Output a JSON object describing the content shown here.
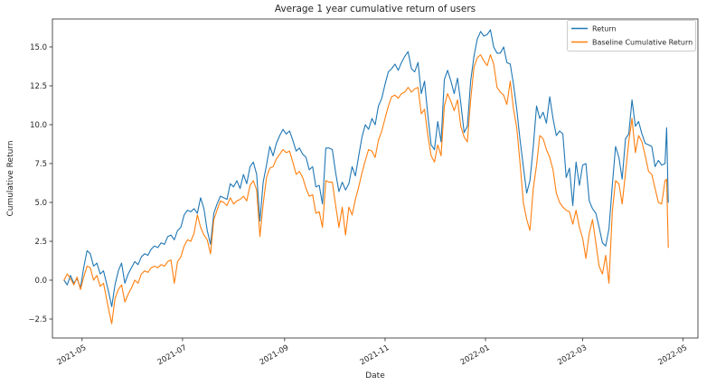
{
  "chart_data": {
    "type": "line",
    "title": "Average 1 year cumulative return of users",
    "xlabel": "Date",
    "ylabel": "Cumulative Return",
    "grid": false,
    "legend": {
      "position": "upper right",
      "entries": [
        "Return",
        "Baseline Cumulative Return"
      ]
    },
    "colors": {
      "Return": "#1f77b4",
      "Baseline Cumulative Return": "#ff7f0e"
    },
    "xlim": [
      "2021-04-13",
      "2022-05-10"
    ],
    "ylim": [
      -3.72,
      16.8
    ],
    "xticks": [
      "2021-05",
      "2021-07",
      "2021-09",
      "2021-11",
      "2022-01",
      "2022-03",
      "2022-05"
    ],
    "yticks": [
      -2.5,
      0.0,
      2.5,
      5.0,
      7.5,
      10.0,
      12.5,
      15.0
    ],
    "series_names": [
      "Return",
      "Baseline Cumulative Return"
    ],
    "data": [
      [
        "date",
        "Return",
        "Baseline Cumulative Return"
      ],
      [
        "2021-04-20",
        0.0,
        0.0
      ],
      [
        "2021-04-22",
        -0.3,
        0.4
      ],
      [
        "2021-04-24",
        0.3,
        0.1
      ],
      [
        "2021-04-26",
        -0.2,
        -0.3
      ],
      [
        "2021-04-28",
        0.1,
        0.2
      ],
      [
        "2021-04-30",
        -0.5,
        -0.6
      ],
      [
        "2021-05-02",
        0.8,
        0.2
      ],
      [
        "2021-05-04",
        1.9,
        0.9
      ],
      [
        "2021-05-06",
        1.7,
        0.8
      ],
      [
        "2021-05-08",
        0.9,
        0.0
      ],
      [
        "2021-05-10",
        1.1,
        0.3
      ],
      [
        "2021-05-12",
        0.4,
        -0.4
      ],
      [
        "2021-05-14",
        0.6,
        -0.2
      ],
      [
        "2021-05-17",
        -0.7,
        -1.8
      ],
      [
        "2021-05-19",
        -1.7,
        -2.8
      ],
      [
        "2021-05-21",
        -0.3,
        -1.2
      ],
      [
        "2021-05-23",
        0.6,
        -0.6
      ],
      [
        "2021-05-25",
        1.1,
        -0.3
      ],
      [
        "2021-05-27",
        -0.2,
        -1.4
      ],
      [
        "2021-05-29",
        0.4,
        -0.9
      ],
      [
        "2021-05-31",
        0.8,
        -0.5
      ],
      [
        "2021-06-02",
        1.2,
        0.0
      ],
      [
        "2021-06-04",
        1.0,
        -0.2
      ],
      [
        "2021-06-06",
        1.5,
        0.4
      ],
      [
        "2021-06-08",
        1.7,
        0.6
      ],
      [
        "2021-06-10",
        1.6,
        0.5
      ],
      [
        "2021-06-12",
        2.0,
        0.8
      ],
      [
        "2021-06-14",
        2.2,
        0.9
      ],
      [
        "2021-06-16",
        2.1,
        0.8
      ],
      [
        "2021-06-18",
        2.4,
        1.0
      ],
      [
        "2021-06-20",
        2.3,
        0.9
      ],
      [
        "2021-06-22",
        2.8,
        1.2
      ],
      [
        "2021-06-24",
        2.9,
        1.3
      ],
      [
        "2021-06-26",
        2.6,
        -0.2
      ],
      [
        "2021-06-28",
        3.2,
        1.2
      ],
      [
        "2021-06-30",
        3.4,
        1.5
      ],
      [
        "2021-07-02",
        4.2,
        2.2
      ],
      [
        "2021-07-04",
        4.5,
        2.6
      ],
      [
        "2021-07-06",
        4.4,
        2.5
      ],
      [
        "2021-07-08",
        4.6,
        3.0
      ],
      [
        "2021-07-10",
        4.3,
        4.2
      ],
      [
        "2021-07-12",
        5.3,
        3.4
      ],
      [
        "2021-07-14",
        4.6,
        2.9
      ],
      [
        "2021-07-16",
        3.2,
        2.6
      ],
      [
        "2021-07-18",
        2.3,
        1.7
      ],
      [
        "2021-07-20",
        4.3,
        3.9
      ],
      [
        "2021-07-22",
        4.9,
        4.5
      ],
      [
        "2021-07-24",
        5.4,
        5.1
      ],
      [
        "2021-07-26",
        5.3,
        5.0
      ],
      [
        "2021-07-28",
        5.2,
        4.8
      ],
      [
        "2021-07-30",
        6.2,
        5.3
      ],
      [
        "2021-08-01",
        6.0,
        4.9
      ],
      [
        "2021-08-03",
        6.4,
        5.1
      ],
      [
        "2021-08-05",
        5.9,
        5.2
      ],
      [
        "2021-08-07",
        6.8,
        5.4
      ],
      [
        "2021-08-09",
        6.2,
        5.1
      ],
      [
        "2021-08-11",
        7.3,
        6.1
      ],
      [
        "2021-08-13",
        7.6,
        6.4
      ],
      [
        "2021-08-15",
        6.8,
        5.8
      ],
      [
        "2021-08-17",
        3.8,
        2.8
      ],
      [
        "2021-08-19",
        6.3,
        4.9
      ],
      [
        "2021-08-21",
        7.4,
        6.6
      ],
      [
        "2021-08-23",
        8.6,
        7.2
      ],
      [
        "2021-08-25",
        8.0,
        7.3
      ],
      [
        "2021-08-27",
        8.8,
        7.8
      ],
      [
        "2021-08-29",
        9.3,
        8.1
      ],
      [
        "2021-08-31",
        9.7,
        8.4
      ],
      [
        "2021-09-02",
        9.4,
        8.2
      ],
      [
        "2021-09-04",
        9.6,
        8.3
      ],
      [
        "2021-09-06",
        9.0,
        7.6
      ],
      [
        "2021-09-08",
        8.3,
        6.8
      ],
      [
        "2021-09-10",
        8.5,
        7.0
      ],
      [
        "2021-09-12",
        8.1,
        6.6
      ],
      [
        "2021-09-14",
        7.9,
        5.9
      ],
      [
        "2021-09-16",
        7.1,
        5.4
      ],
      [
        "2021-09-18",
        7.3,
        5.5
      ],
      [
        "2021-09-20",
        6.0,
        4.3
      ],
      [
        "2021-09-22",
        6.1,
        4.4
      ],
      [
        "2021-09-24",
        4.9,
        3.4
      ],
      [
        "2021-09-26",
        8.5,
        6.4
      ],
      [
        "2021-09-28",
        8.5,
        6.3
      ],
      [
        "2021-09-30",
        8.4,
        6.3
      ],
      [
        "2021-10-02",
        6.9,
        4.8
      ],
      [
        "2021-10-04",
        5.7,
        3.4
      ],
      [
        "2021-10-06",
        6.3,
        4.7
      ],
      [
        "2021-10-08",
        5.8,
        2.9
      ],
      [
        "2021-10-10",
        6.2,
        4.7
      ],
      [
        "2021-10-12",
        7.3,
        4.2
      ],
      [
        "2021-10-14",
        6.7,
        5.2
      ],
      [
        "2021-10-16",
        8.0,
        6.0
      ],
      [
        "2021-10-18",
        9.2,
        6.9
      ],
      [
        "2021-10-20",
        10.0,
        7.7
      ],
      [
        "2021-10-22",
        9.7,
        8.4
      ],
      [
        "2021-10-24",
        10.4,
        8.3
      ],
      [
        "2021-10-26",
        10.0,
        7.9
      ],
      [
        "2021-10-28",
        11.2,
        9.0
      ],
      [
        "2021-10-30",
        11.7,
        9.6
      ],
      [
        "2021-11-01",
        12.6,
        10.4
      ],
      [
        "2021-11-03",
        13.4,
        11.2
      ],
      [
        "2021-11-05",
        13.6,
        11.8
      ],
      [
        "2021-11-07",
        13.9,
        11.9
      ],
      [
        "2021-11-09",
        13.5,
        11.7
      ],
      [
        "2021-11-11",
        14.0,
        12.0
      ],
      [
        "2021-11-13",
        14.4,
        12.1
      ],
      [
        "2021-11-15",
        14.7,
        12.4
      ],
      [
        "2021-11-17",
        13.6,
        12.1
      ],
      [
        "2021-11-19",
        13.4,
        12.3
      ],
      [
        "2021-11-21",
        14.0,
        12.4
      ],
      [
        "2021-11-23",
        12.0,
        10.7
      ],
      [
        "2021-11-25",
        12.8,
        11.0
      ],
      [
        "2021-11-27",
        10.6,
        9.3
      ],
      [
        "2021-11-29",
        8.7,
        8.0
      ],
      [
        "2021-12-01",
        8.4,
        7.6
      ],
      [
        "2021-12-03",
        10.2,
        8.7
      ],
      [
        "2021-12-05",
        8.9,
        8.0
      ],
      [
        "2021-12-07",
        12.9,
        11.2
      ],
      [
        "2021-12-09",
        13.5,
        12.0
      ],
      [
        "2021-12-11",
        12.8,
        11.5
      ],
      [
        "2021-12-13",
        12.0,
        10.9
      ],
      [
        "2021-12-15",
        13.0,
        11.6
      ],
      [
        "2021-12-17",
        11.4,
        9.9
      ],
      [
        "2021-12-19",
        9.5,
        9.2
      ],
      [
        "2021-12-21",
        9.9,
        8.9
      ],
      [
        "2021-12-23",
        12.8,
        11.6
      ],
      [
        "2021-12-25",
        14.4,
        13.7
      ],
      [
        "2021-12-27",
        15.5,
        14.3
      ],
      [
        "2021-12-29",
        16.0,
        14.5
      ],
      [
        "2021-12-31",
        15.7,
        14.1
      ],
      [
        "2022-01-02",
        15.8,
        13.8
      ],
      [
        "2022-01-04",
        16.1,
        14.5
      ],
      [
        "2022-01-06",
        15.0,
        13.9
      ],
      [
        "2022-01-08",
        14.6,
        12.4
      ],
      [
        "2022-01-10",
        14.6,
        12.1
      ],
      [
        "2022-01-12",
        15.0,
        11.9
      ],
      [
        "2022-01-14",
        14.0,
        11.3
      ],
      [
        "2022-01-16",
        13.9,
        12.8
      ],
      [
        "2022-01-18",
        12.6,
        11.0
      ],
      [
        "2022-01-20",
        11.0,
        9.8
      ],
      [
        "2022-01-22",
        9.0,
        7.5
      ],
      [
        "2022-01-24",
        7.3,
        5.0
      ],
      [
        "2022-01-26",
        5.6,
        3.9
      ],
      [
        "2022-01-28",
        6.4,
        3.2
      ],
      [
        "2022-01-30",
        8.6,
        5.9
      ],
      [
        "2022-02-01",
        11.2,
        7.4
      ],
      [
        "2022-02-03",
        10.4,
        9.3
      ],
      [
        "2022-02-05",
        10.8,
        9.1
      ],
      [
        "2022-02-07",
        10.1,
        8.4
      ],
      [
        "2022-02-09",
        11.8,
        7.9
      ],
      [
        "2022-02-11",
        10.4,
        7.1
      ],
      [
        "2022-02-13",
        9.3,
        5.6
      ],
      [
        "2022-02-15",
        9.6,
        5.0
      ],
      [
        "2022-02-17",
        9.4,
        4.7
      ],
      [
        "2022-02-19",
        6.6,
        4.5
      ],
      [
        "2022-02-21",
        7.2,
        4.4
      ],
      [
        "2022-02-23",
        4.8,
        3.6
      ],
      [
        "2022-02-25",
        7.6,
        4.5
      ],
      [
        "2022-02-27",
        6.1,
        3.4
      ],
      [
        "2022-03-01",
        7.4,
        2.7
      ],
      [
        "2022-03-03",
        7.5,
        1.4
      ],
      [
        "2022-03-05",
        5.1,
        3.0
      ],
      [
        "2022-03-07",
        4.6,
        3.9
      ],
      [
        "2022-03-09",
        4.3,
        2.4
      ],
      [
        "2022-03-11",
        3.4,
        0.9
      ],
      [
        "2022-03-13",
        2.4,
        0.4
      ],
      [
        "2022-03-15",
        2.2,
        1.6
      ],
      [
        "2022-03-17",
        3.3,
        -0.2
      ],
      [
        "2022-03-19",
        6.1,
        4.4
      ],
      [
        "2022-03-21",
        8.6,
        6.4
      ],
      [
        "2022-03-23",
        7.9,
        6.2
      ],
      [
        "2022-03-25",
        6.5,
        4.9
      ],
      [
        "2022-03-27",
        9.1,
        6.9
      ],
      [
        "2022-03-29",
        9.4,
        8.9
      ],
      [
        "2022-03-31",
        11.6,
        10.4
      ],
      [
        "2022-04-02",
        9.9,
        8.2
      ],
      [
        "2022-04-04",
        10.2,
        9.3
      ],
      [
        "2022-04-06",
        9.4,
        8.9
      ],
      [
        "2022-04-08",
        8.8,
        8.0
      ],
      [
        "2022-04-10",
        8.7,
        7.0
      ],
      [
        "2022-04-12",
        8.6,
        6.8
      ],
      [
        "2022-04-14",
        7.3,
        5.9
      ],
      [
        "2022-04-16",
        7.7,
        5.0
      ],
      [
        "2022-04-18",
        7.4,
        4.9
      ],
      [
        "2022-04-20",
        7.5,
        6.4
      ],
      [
        "2022-04-21",
        9.8,
        6.5
      ],
      [
        "2022-04-22",
        5.0,
        2.1
      ]
    ]
  }
}
